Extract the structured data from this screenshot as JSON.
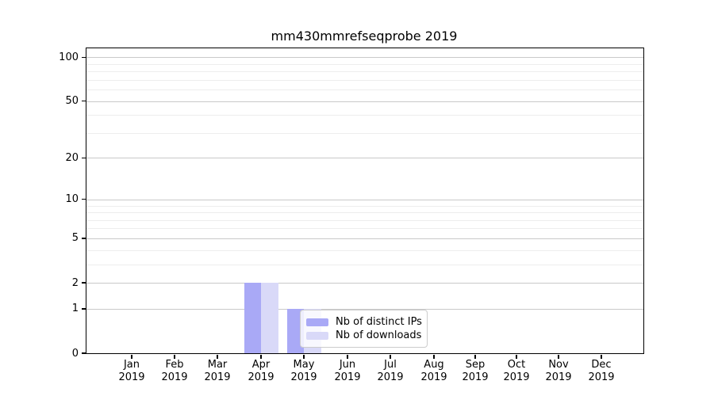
{
  "chart_data": {
    "type": "bar",
    "title": "mm430mmrefseqprobe 2019",
    "categories": [
      {
        "month": "Jan",
        "year": "2019"
      },
      {
        "month": "Feb",
        "year": "2019"
      },
      {
        "month": "Mar",
        "year": "2019"
      },
      {
        "month": "Apr",
        "year": "2019"
      },
      {
        "month": "May",
        "year": "2019"
      },
      {
        "month": "Jun",
        "year": "2019"
      },
      {
        "month": "Jul",
        "year": "2019"
      },
      {
        "month": "Aug",
        "year": "2019"
      },
      {
        "month": "Sep",
        "year": "2019"
      },
      {
        "month": "Oct",
        "year": "2019"
      },
      {
        "month": "Nov",
        "year": "2019"
      },
      {
        "month": "Dec",
        "year": "2019"
      }
    ],
    "series": [
      {
        "name": "Nb of distinct IPs",
        "color": "#a9a9f6",
        "values": [
          0,
          0,
          0,
          2,
          1,
          0,
          0,
          0,
          0,
          0,
          0,
          0
        ]
      },
      {
        "name": "Nb of downloads",
        "color": "#d9d9f8",
        "values": [
          0,
          0,
          0,
          2,
          1,
          0,
          0,
          0,
          0,
          0,
          0,
          0
        ]
      }
    ],
    "xlabel": "",
    "ylabel": "",
    "yscale": "log1p",
    "ylim": [
      0,
      115
    ],
    "yticks": [
      0,
      1,
      2,
      5,
      10,
      20,
      50,
      100
    ],
    "y_minor_ticks": [
      3,
      4,
      6,
      7,
      8,
      9,
      30,
      40,
      60,
      70,
      80,
      90
    ],
    "grid": "horizontal",
    "legend": {
      "position": "inside-lower-center",
      "entries": [
        "Nb of distinct IPs",
        "Nb of downloads"
      ]
    },
    "colors": {
      "major_grid": "#c9c9c9",
      "minor_grid": "#ededed",
      "axis": "#000000",
      "background": "#ffffff"
    }
  }
}
